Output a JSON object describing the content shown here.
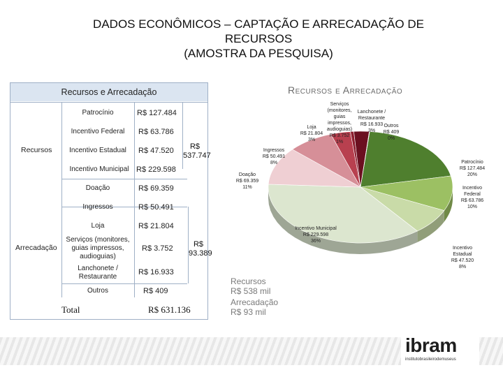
{
  "slide": {
    "title_line1": "DADOS ECONÔMICOS – CAPTAÇÃO E ARRECADAÇÃO DE",
    "title_line2": "RECURSOS",
    "title_line3": "(AMOSTRA DA PESQUISA)"
  },
  "table": {
    "header": "Recursos e Arrecadação",
    "groups": [
      {
        "label": "Recursos",
        "subtotal_line1": "R$",
        "subtotal_line2": "537.747"
      },
      {
        "label": "Arrecadação",
        "subtotal_line1": "R$",
        "subtotal_line2": "93.389"
      }
    ],
    "rows": [
      {
        "label": "Patrocínio",
        "value": "R$ 127.484"
      },
      {
        "label": "Incentivo Federal",
        "value": "R$ 63.786"
      },
      {
        "label": "Incentivo Estadual",
        "value": "R$ 47.520"
      },
      {
        "label": "Incentivo Municipal",
        "value": "R$ 229.598"
      },
      {
        "label": "Doação",
        "value": "R$ 69.359"
      },
      {
        "label": "Ingressos",
        "value": "R$ 50.491"
      },
      {
        "label": "Loja",
        "value": "R$ 21.804"
      },
      {
        "label": "Serviços (monitores, guias impressos, audioguias)",
        "value": "R$ 3.752"
      },
      {
        "label": "Lanchonete / Restaurante",
        "value": "R$ 16.933"
      },
      {
        "label": "Outros",
        "value": "R$ 409"
      }
    ],
    "total_label": "Total",
    "total_value": "R$ 631.136"
  },
  "chart_data": {
    "type": "pie",
    "title": "Recursos e Arrecadação",
    "slices": [
      {
        "label": "Patrocínio",
        "value_text": "R$ 127.484",
        "value": 127484,
        "pct": "20%",
        "color": "#4f7f2e"
      },
      {
        "label": "Incentivo Federal",
        "value_text": "R$ 63.786",
        "value": 63786,
        "pct": "10%",
        "color": "#9cc063"
      },
      {
        "label": "Incentivo Estadual",
        "value_text": "R$ 47.520",
        "value": 47520,
        "pct": "8%",
        "color": "#c9dba8"
      },
      {
        "label": "Incentivo Municipal",
        "value_text": "R$ 229.598",
        "value": 229598,
        "pct": "36%",
        "color": "#dce6cf"
      },
      {
        "label": "Doação",
        "value_text": "R$ 69.359",
        "value": 69359,
        "pct": "11%",
        "color": "#efcfd3"
      },
      {
        "label": "Ingressos",
        "value_text": "R$ 50.491",
        "value": 50491,
        "pct": "8%",
        "color": "#d68f98"
      },
      {
        "label": "Loja",
        "value_text": "R$ 21.804",
        "value": 21804,
        "pct": "3%",
        "color": "#b8404f"
      },
      {
        "label": "Serviços (monitores, guias impressos, audioguias)",
        "value_text": "R$ 3.752",
        "value": 3752,
        "pct": "1%",
        "color": "#8c1f2f"
      },
      {
        "label": "Lanchonete / Restaurante",
        "value_text": "R$ 16.933",
        "value": 16933,
        "pct": "3%",
        "color": "#6b1020"
      },
      {
        "label": "Outros",
        "value_text": "R$ 409",
        "value": 409,
        "pct": "0%",
        "color": "#3d0810"
      }
    ],
    "summary": [
      {
        "label": "Recursos",
        "value": "R$ 538 mil"
      },
      {
        "label": "Arrecadação",
        "value": "R$ 93 mil"
      }
    ]
  },
  "chart_labels": {
    "title": "Recursos e Arrecadação",
    "patrocinio": [
      "Patrocínio",
      "R$ 127.484",
      "20%"
    ],
    "federal": [
      "Incentivo",
      "Federal",
      "R$ 63.786",
      "10%"
    ],
    "estadual": [
      "Incentivo",
      "Estadual",
      "R$ 47.520",
      "8%"
    ],
    "municipal": [
      "Incentivo Municipal",
      "R$ 229.598",
      "36%"
    ],
    "doacao": [
      "Doação",
      "R$ 69.359",
      "11%"
    ],
    "ingressos": [
      "Ingressos",
      "R$ 50.491",
      "8%"
    ],
    "loja": [
      "Loja",
      "R$ 21.804",
      "3%"
    ],
    "servicos": [
      "Serviços",
      "(monitores,",
      "guias",
      "impressos,",
      "audioguias)",
      "R$ 3.752",
      "1%"
    ],
    "lanchonete": [
      "Lanchonete /",
      "Restaurante",
      "R$ 16.933",
      "3%"
    ],
    "outros": [
      "Outros",
      "R$ 409",
      "0%"
    ]
  },
  "footer": {
    "logo_text": "ibram",
    "logo_subtitle": "institutobrasileirodemuseus"
  }
}
